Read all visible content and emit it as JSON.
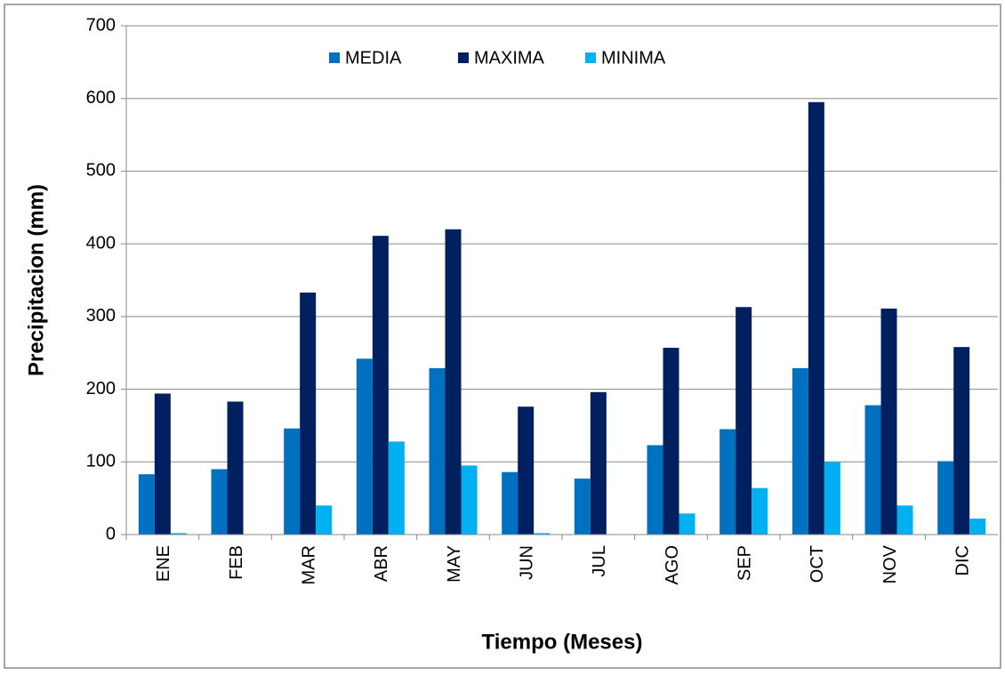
{
  "chart_data": {
    "type": "bar",
    "xlabel": "Tiempo (Meses)",
    "ylabel": "Precipitacion (mm)",
    "categories": [
      "ENE",
      "FEB",
      "MAR",
      "ABR",
      "MAY",
      "JUN",
      "JUL",
      "AGO",
      "SEP",
      "OCT",
      "NOV",
      "DIC"
    ],
    "series": [
      {
        "name": "MEDIA",
        "color": "#0070c0",
        "values": [
          83,
          90,
          146,
          242,
          229,
          86,
          77,
          123,
          145,
          229,
          178,
          101
        ]
      },
      {
        "name": "MAXIMA",
        "color": "#002060",
        "values": [
          194,
          183,
          333,
          411,
          420,
          176,
          196,
          257,
          313,
          595,
          311,
          258
        ]
      },
      {
        "name": "MINIMA",
        "color": "#00b0f0",
        "values": [
          2,
          0,
          40,
          128,
          95,
          2,
          0,
          29,
          64,
          100,
          40,
          22
        ]
      }
    ],
    "ylim": [
      0,
      700
    ],
    "yticks": [
      0,
      100,
      200,
      300,
      400,
      500,
      600,
      700
    ],
    "grid": true,
    "legend": "top"
  }
}
